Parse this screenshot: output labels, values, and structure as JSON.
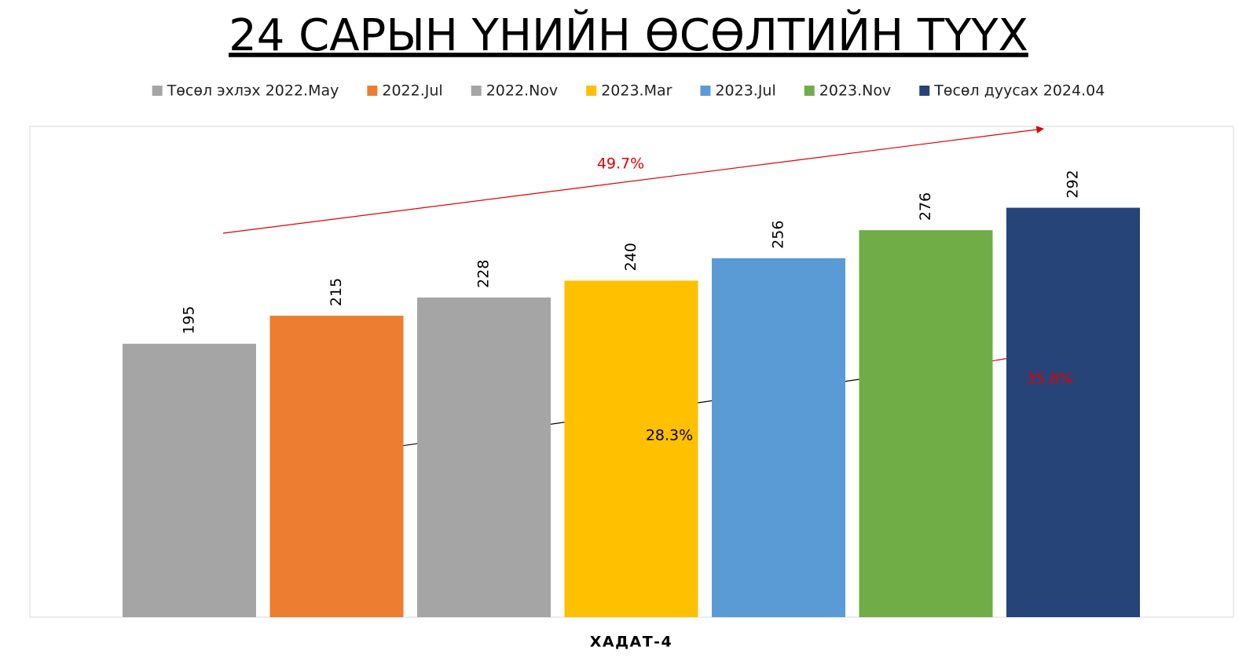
{
  "chart_data": {
    "type": "bar",
    "title": "24 САРЫН ҮНИЙН ӨСӨЛТИЙН ТҮҮХ",
    "categories": [
      "ХАДАТ-4"
    ],
    "series": [
      {
        "name": "Төсөл эхлэх 2022.May",
        "color": "#a5a5a5",
        "values": [
          195
        ]
      },
      {
        "name": "2022.Jul",
        "color": "#ed7d31",
        "values": [
          215
        ]
      },
      {
        "name": "2022.Nov",
        "color": "#a5a5a5",
        "values": [
          228
        ]
      },
      {
        "name": "2023.Mar",
        "color": "#ffc000",
        "values": [
          240
        ]
      },
      {
        "name": "2023.Jul",
        "color": "#5b9bd5",
        "values": [
          256
        ]
      },
      {
        "name": "2023.Nov",
        "color": "#70ad47",
        "values": [
          276
        ]
      },
      {
        "name": "Төсөл дуусах 2024.04",
        "color": "#264478",
        "values": [
          292
        ]
      }
    ],
    "ylim": [
      0,
      350
    ],
    "legend": "top",
    "annotations": [
      {
        "text": "49.7%",
        "color": "#e00000"
      },
      {
        "text": "28.3%",
        "color": "#000000"
      },
      {
        "text": "35.8%",
        "color": "#e00000"
      }
    ]
  }
}
